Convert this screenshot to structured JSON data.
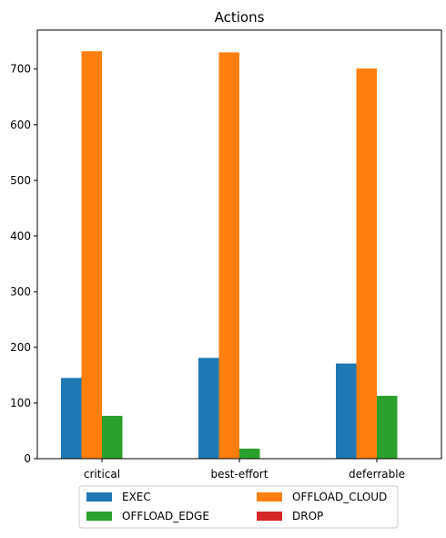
{
  "chart_data": {
    "type": "bar",
    "title": "Actions",
    "xlabel": "",
    "ylabel": "",
    "categories": [
      "critical",
      "best-effort",
      "deferrable"
    ],
    "series": [
      {
        "name": "EXEC",
        "color": "#1f77b4",
        "values": [
          145,
          181,
          171
        ]
      },
      {
        "name": "OFFLOAD_CLOUD",
        "color": "#ff7f0e",
        "values": [
          732,
          730,
          701
        ]
      },
      {
        "name": "OFFLOAD_EDGE",
        "color": "#2ca02c",
        "values": [
          77,
          18,
          113
        ]
      },
      {
        "name": "DROP",
        "color": "#d62728",
        "values": [
          0,
          0,
          0
        ]
      }
    ],
    "ylim": [
      0,
      770
    ],
    "yticks": [
      0,
      100,
      200,
      300,
      400,
      500,
      600,
      700
    ],
    "grid": false,
    "legend": "bottom-center, two columns"
  }
}
